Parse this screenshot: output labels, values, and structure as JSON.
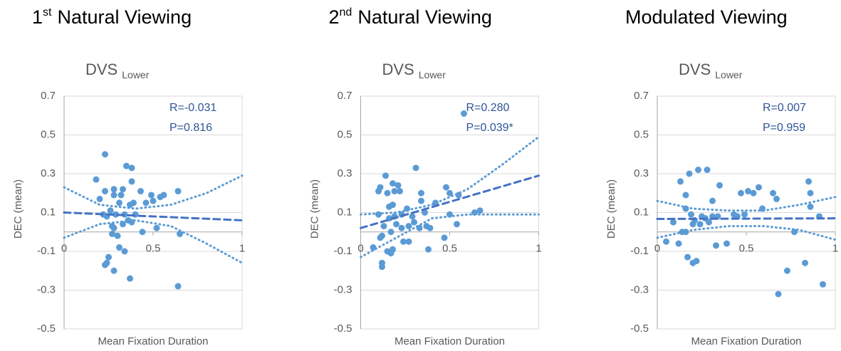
{
  "chart_data": [
    {
      "type": "scatter",
      "title": [
        {
          "text": "1"
        },
        {
          "text": "st",
          "style": "sup"
        },
        {
          "text": "Natural Viewing"
        }
      ],
      "subtitle": [
        {
          "text": "DVS"
        },
        {
          "text": "Lower",
          "style": "sub"
        }
      ],
      "xlabel": "Mean Fixation Duration",
      "ylabel": "DEC (mean)",
      "annotations": [
        "R=-0.031",
        "P=0.816"
      ],
      "xlim": [
        0,
        1
      ],
      "ylim": [
        -0.5,
        0.7
      ],
      "xticks": [
        0,
        0.5,
        1
      ],
      "yticks": [
        0.7,
        0.5,
        0.3,
        0.1,
        -0.1,
        -0.3,
        -0.5
      ],
      "grid": true,
      "color": "#5b9bd5",
      "trend_color": "#4472c4",
      "x": [
        0.18,
        0.2,
        0.23,
        0.23,
        0.22,
        0.24,
        0.26,
        0.25,
        0.24,
        0.23,
        0.28,
        0.28,
        0.29,
        0.27,
        0.27,
        0.28,
        0.3,
        0.28,
        0.31,
        0.32,
        0.33,
        0.34,
        0.33,
        0.31,
        0.34,
        0.35,
        0.38,
        0.38,
        0.37,
        0.36,
        0.38,
        0.39,
        0.4,
        0.37,
        0.43,
        0.44,
        0.46,
        0.49,
        0.5,
        0.54,
        0.52,
        0.56,
        0.64,
        0.65,
        0.64
      ],
      "y": [
        0.27,
        0.17,
        0.4,
        0.21,
        0.09,
        0.08,
        0.11,
        -0.13,
        -0.16,
        -0.17,
        0.22,
        0.19,
        0.09,
        0.03,
        -0.01,
        0.02,
        -0.02,
        -0.2,
        0.15,
        0.19,
        0.22,
        0.09,
        0.04,
        -0.08,
        -0.1,
        0.34,
        0.33,
        0.26,
        0.14,
        0.06,
        0.05,
        0.15,
        0.09,
        -0.24,
        0.21,
        0,
        0.15,
        0.19,
        0.16,
        0.18,
        0.02,
        0.19,
        0.21,
        -0.01,
        -0.28
      ],
      "trendline": {
        "x": [
          0,
          1
        ],
        "y": [
          0.1,
          0.06
        ]
      },
      "ci_upper": {
        "x": [
          0,
          0.2,
          0.4,
          0.6,
          0.8,
          1
        ],
        "y": [
          0.23,
          0.14,
          0.12,
          0.14,
          0.2,
          0.29
        ]
      },
      "ci_lower": {
        "x": [
          0,
          0.2,
          0.4,
          0.6,
          0.8,
          1
        ],
        "y": [
          -0.03,
          0.04,
          0.06,
          0.03,
          -0.06,
          -0.16
        ]
      }
    },
    {
      "type": "scatter",
      "title": [
        {
          "text": "2"
        },
        {
          "text": "nd",
          "style": "sup"
        },
        {
          "text": "Natural Viewing"
        }
      ],
      "subtitle": [
        {
          "text": "DVS"
        },
        {
          "text": "Lower",
          "style": "sub"
        }
      ],
      "xlabel": "Mean Fixation Duration",
      "ylabel": "DEC (mean)",
      "annotations": [
        "R=0.280",
        "P=0.039*"
      ],
      "xlim": [
        0,
        1
      ],
      "ylim": [
        -0.5,
        0.7
      ],
      "xticks": [
        0,
        0.5,
        1
      ],
      "yticks": [
        0.7,
        0.5,
        0.3,
        0.1,
        -0.1,
        -0.3,
        -0.5
      ],
      "grid": true,
      "color": "#5b9bd5",
      "trend_color": "#4472c4",
      "x": [
        0.07,
        0.11,
        0.1,
        0.11,
        0.1,
        0.12,
        0.12,
        0.12,
        0.13,
        0.14,
        0.15,
        0.16,
        0.16,
        0.15,
        0.17,
        0.18,
        0.17,
        0.18,
        0.19,
        0.18,
        0.19,
        0.2,
        0.21,
        0.22,
        0.23,
        0.23,
        0.24,
        0.26,
        0.27,
        0.29,
        0.27,
        0.31,
        0.3,
        0.33,
        0.34,
        0.34,
        0.36,
        0.37,
        0.38,
        0.39,
        0.42,
        0.48,
        0.47,
        0.5,
        0.5,
        0.54,
        0.55,
        0.58,
        0.64,
        0.67
      ],
      "y": [
        -0.08,
        -0.03,
        0.21,
        0.23,
        0.09,
        -0.02,
        -0.16,
        -0.18,
        0.03,
        0.29,
        0.2,
        0.13,
        0.07,
        -0.1,
        0,
        -0.09,
        -0.11,
        0.25,
        0.21,
        0.14,
        0.08,
        0.04,
        0.24,
        0.21,
        0.09,
        0.02,
        -0.05,
        0.12,
        0.03,
        0.08,
        -0.05,
        0.33,
        0.05,
        0.02,
        0.2,
        0.16,
        0.1,
        0.03,
        -0.09,
        0.02,
        0.15,
        0.23,
        -0.03,
        0.2,
        0.09,
        0.04,
        0.19,
        0.61,
        0.1,
        0.11
      ],
      "trendline": {
        "x": [
          0,
          1
        ],
        "y": [
          0.02,
          0.29
        ]
      },
      "ci_upper": {
        "x": [
          0,
          0.2,
          0.4,
          0.6,
          0.8,
          1
        ],
        "y": [
          0.09,
          0.1,
          0.14,
          0.22,
          0.35,
          0.49
        ]
      },
      "ci_lower": {
        "x": [
          0,
          0.2,
          0.4,
          0.6,
          0.8,
          1
        ],
        "y": [
          -0.13,
          -0.03,
          0.07,
          0.09,
          0.09,
          0.09
        ]
      }
    },
    {
      "type": "scatter",
      "title": [
        {
          "text": "Modulated Viewing"
        }
      ],
      "subtitle": [
        {
          "text": "DVS"
        },
        {
          "text": "Lower",
          "style": "sub"
        }
      ],
      "xlabel": "Mean Fixation Duration",
      "ylabel": "DEC (mean)",
      "annotations": [
        "R=0.007",
        "P=0.959"
      ],
      "xlim": [
        0,
        1
      ],
      "ylim": [
        -0.5,
        0.7
      ],
      "xticks": [
        0,
        0.5,
        1
      ],
      "yticks": [
        0.7,
        0.5,
        0.3,
        0.1,
        -0.1,
        -0.3,
        -0.5
      ],
      "grid": true,
      "color": "#5b9bd5",
      "trend_color": "#4472c4",
      "x": [
        0.05,
        0.09,
        0.12,
        0.13,
        0.14,
        0.16,
        0.16,
        0.16,
        0.17,
        0.18,
        0.19,
        0.2,
        0.2,
        0.21,
        0.22,
        0.23,
        0.24,
        0.25,
        0.27,
        0.29,
        0.28,
        0.31,
        0.31,
        0.33,
        0.34,
        0.35,
        0.39,
        0.43,
        0.45,
        0.47,
        0.49,
        0.51,
        0.54,
        0.57,
        0.59,
        0.65,
        0.67,
        0.68,
        0.73,
        0.77,
        0.83,
        0.85,
        0.86,
        0.86,
        0.91,
        0.93
      ],
      "y": [
        -0.05,
        0.05,
        -0.06,
        0.26,
        0,
        0.12,
        0.19,
        0,
        -0.13,
        0.3,
        0.09,
        0.04,
        -0.16,
        0.06,
        -0.15,
        0.32,
        0.04,
        0.08,
        0.07,
        0.05,
        0.32,
        0.16,
        0.08,
        -0.07,
        0.08,
        0.24,
        -0.06,
        0.09,
        0.08,
        0.2,
        0.09,
        0.21,
        0.2,
        0.23,
        0.12,
        0.2,
        0.17,
        -0.32,
        -0.2,
        0,
        -0.16,
        0.26,
        0.2,
        0.13,
        0.08,
        -0.27
      ],
      "trendline": {
        "x": [
          0,
          1
        ],
        "y": [
          0.067,
          0.07
        ]
      },
      "ci_upper": {
        "x": [
          0,
          0.2,
          0.4,
          0.6,
          0.8,
          1
        ],
        "y": [
          0.16,
          0.12,
          0.11,
          0.11,
          0.14,
          0.18
        ]
      },
      "ci_lower": {
        "x": [
          0,
          0.2,
          0.4,
          0.6,
          0.8,
          1
        ],
        "y": [
          -0.03,
          0.01,
          0.03,
          0.03,
          0.01,
          -0.04
        ]
      }
    }
  ]
}
